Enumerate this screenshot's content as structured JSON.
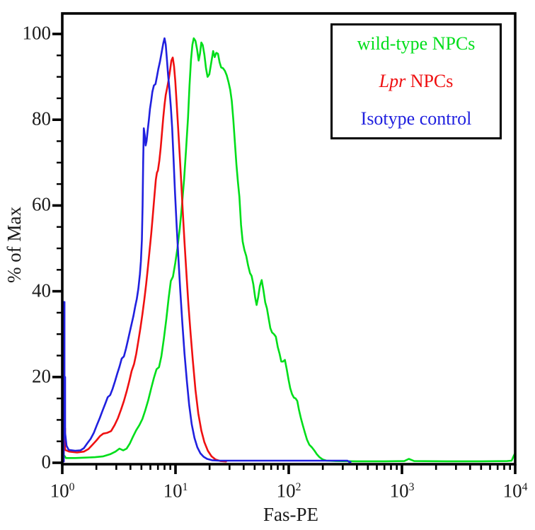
{
  "chart_data": {
    "type": "line",
    "subtype": "flow-cytometry-histogram-overlay",
    "title": "",
    "x_label": "Fas-PE",
    "y_label": "% of Max",
    "x_scale": "log",
    "x_range": [
      1,
      10000
    ],
    "y_range": [
      0,
      100
    ],
    "x_tick_base": "10",
    "x_tick_exponents": [
      0,
      1,
      2,
      3,
      4
    ],
    "y_ticks": [
      0,
      20,
      40,
      60,
      80,
      100
    ],
    "y_minor_tick_step": 5,
    "grid": false,
    "legend_position": "top-right",
    "series": [
      {
        "id": "wild-type-npcs",
        "name_italic": "",
        "name_rest": "wild-type NPCs",
        "color": "#00DE1A",
        "points": [
          [
            1.0,
            0.3
          ],
          [
            1.03,
            1.8
          ],
          [
            1.08,
            1.1
          ],
          [
            1.3,
            1.1
          ],
          [
            1.6,
            1.2
          ],
          [
            1.95,
            1.3
          ],
          [
            2.3,
            1.5
          ],
          [
            2.65,
            2.0
          ],
          [
            2.95,
            2.6
          ],
          [
            3.2,
            3.3
          ],
          [
            3.45,
            2.9
          ],
          [
            3.7,
            3.3
          ],
          [
            3.95,
            4.5
          ],
          [
            4.2,
            6.0
          ],
          [
            4.5,
            7.6
          ],
          [
            4.8,
            8.8
          ],
          [
            5.1,
            10.2
          ],
          [
            5.4,
            12.2
          ],
          [
            5.75,
            14.6
          ],
          [
            6.1,
            17.4
          ],
          [
            6.45,
            19.8
          ],
          [
            6.8,
            21.8
          ],
          [
            7.15,
            22.3
          ],
          [
            7.5,
            24.8
          ],
          [
            7.9,
            29.0
          ],
          [
            8.3,
            33.6
          ],
          [
            8.7,
            38.4
          ],
          [
            9.1,
            42.4
          ],
          [
            9.5,
            43.4
          ],
          [
            9.95,
            46.6
          ],
          [
            10.4,
            50.0
          ],
          [
            10.9,
            54.6
          ],
          [
            11.4,
            60.0
          ],
          [
            11.9,
            66.0
          ],
          [
            12.4,
            73.0
          ],
          [
            12.9,
            80.5
          ],
          [
            13.3,
            88.0
          ],
          [
            13.7,
            94.0
          ],
          [
            14.1,
            97.5
          ],
          [
            14.5,
            99.0
          ],
          [
            15.0,
            98.4
          ],
          [
            15.5,
            96.4
          ],
          [
            16.0,
            93.8
          ],
          [
            16.45,
            95.4
          ],
          [
            16.9,
            98.0
          ],
          [
            17.4,
            97.4
          ],
          [
            18.0,
            95.2
          ],
          [
            18.6,
            92.0
          ],
          [
            19.2,
            90.0
          ],
          [
            19.9,
            90.6
          ],
          [
            20.7,
            93.4
          ],
          [
            21.5,
            96.0
          ],
          [
            22.2,
            94.6
          ],
          [
            22.9,
            95.6
          ],
          [
            23.7,
            95.4
          ],
          [
            24.5,
            93.4
          ],
          [
            25.3,
            92.2
          ],
          [
            26.3,
            92.0
          ],
          [
            27.3,
            91.4
          ],
          [
            28.3,
            90.4
          ],
          [
            29.4,
            88.8
          ],
          [
            30.4,
            87.0
          ],
          [
            31.4,
            84.4
          ],
          [
            32.4,
            80.0
          ],
          [
            33.5,
            74.5
          ],
          [
            34.5,
            69.5
          ],
          [
            35.6,
            65.5
          ],
          [
            36.7,
            62.0
          ],
          [
            37.9,
            55.5
          ],
          [
            39.2,
            51.6
          ],
          [
            40.6,
            49.6
          ],
          [
            42.2,
            48.2
          ],
          [
            43.8,
            46.0
          ],
          [
            45.5,
            44.2
          ],
          [
            47.0,
            43.6
          ],
          [
            48.7,
            41.6
          ],
          [
            50.5,
            38.6
          ],
          [
            52.0,
            36.8
          ],
          [
            53.7,
            38.6
          ],
          [
            55.6,
            41.2
          ],
          [
            57.7,
            42.6
          ],
          [
            59.8,
            40.2
          ],
          [
            62.0,
            37.4
          ],
          [
            64.2,
            36.0
          ],
          [
            66.5,
            33.6
          ],
          [
            68.8,
            31.4
          ],
          [
            71.2,
            30.4
          ],
          [
            74.0,
            30.0
          ],
          [
            77.0,
            29.4
          ],
          [
            80.0,
            27.0
          ],
          [
            83.0,
            25.4
          ],
          [
            86.0,
            23.6
          ],
          [
            89.0,
            23.6
          ],
          [
            92.5,
            24.0
          ],
          [
            96.0,
            21.8
          ],
          [
            99.5,
            19.4
          ],
          [
            103.0,
            17.4
          ],
          [
            107.0,
            16.0
          ],
          [
            111.0,
            15.2
          ],
          [
            115.0,
            15.0
          ],
          [
            119.0,
            14.4
          ],
          [
            123.0,
            12.4
          ],
          [
            128.0,
            10.4
          ],
          [
            133.0,
            8.8
          ],
          [
            139.0,
            7.0
          ],
          [
            145.0,
            5.4
          ],
          [
            152.0,
            4.2
          ],
          [
            160.0,
            3.6
          ],
          [
            168.0,
            2.9
          ],
          [
            177.0,
            2.0
          ],
          [
            187.0,
            1.3
          ],
          [
            199.0,
            0.8
          ],
          [
            215.0,
            0.5
          ],
          [
            260.0,
            0.4
          ],
          [
            400.0,
            0.35
          ],
          [
            700.0,
            0.35
          ],
          [
            1050.0,
            0.4
          ],
          [
            1150.0,
            0.9
          ],
          [
            1280.0,
            0.4
          ],
          [
            2500.0,
            0.35
          ],
          [
            5000.0,
            0.35
          ],
          [
            8500.0,
            0.4
          ],
          [
            9300.0,
            0.5
          ],
          [
            9700.0,
            1.6
          ],
          [
            9950.0,
            2.2
          ],
          [
            10000.0,
            2.2
          ]
        ]
      },
      {
        "id": "lpr-npcs",
        "name_italic": "Lpr",
        "name_rest": " NPCs",
        "color": "#EF1011",
        "points": [
          [
            1.0,
            0.3
          ],
          [
            1.03,
            0.3
          ],
          [
            1.03,
            8.0
          ],
          [
            1.06,
            8.0
          ],
          [
            1.06,
            3.0
          ],
          [
            1.15,
            2.6
          ],
          [
            1.35,
            2.4
          ],
          [
            1.55,
            2.6
          ],
          [
            1.7,
            3.2
          ],
          [
            1.85,
            4.2
          ],
          [
            2.0,
            5.2
          ],
          [
            2.15,
            6.2
          ],
          [
            2.3,
            6.8
          ],
          [
            2.5,
            7.0
          ],
          [
            2.7,
            7.4
          ],
          [
            2.9,
            8.8
          ],
          [
            3.1,
            10.4
          ],
          [
            3.3,
            12.4
          ],
          [
            3.5,
            14.4
          ],
          [
            3.7,
            16.6
          ],
          [
            3.9,
            19.0
          ],
          [
            4.1,
            21.4
          ],
          [
            4.3,
            23.0
          ],
          [
            4.5,
            25.4
          ],
          [
            4.7,
            28.4
          ],
          [
            4.9,
            31.4
          ],
          [
            5.1,
            34.6
          ],
          [
            5.3,
            38.0
          ],
          [
            5.5,
            41.6
          ],
          [
            5.7,
            45.4
          ],
          [
            5.9,
            49.4
          ],
          [
            6.1,
            53.4
          ],
          [
            6.3,
            57.6
          ],
          [
            6.5,
            62.0
          ],
          [
            6.7,
            66.0
          ],
          [
            6.85,
            67.6
          ],
          [
            7.0,
            68.2
          ],
          [
            7.2,
            70.5
          ],
          [
            7.4,
            73.5
          ],
          [
            7.6,
            77.0
          ],
          [
            7.8,
            80.5
          ],
          [
            8.0,
            83.5
          ],
          [
            8.2,
            85.8
          ],
          [
            8.45,
            87.5
          ],
          [
            8.7,
            89.3
          ],
          [
            8.95,
            91.5
          ],
          [
            9.2,
            93.8
          ],
          [
            9.45,
            94.5
          ],
          [
            9.7,
            92.5
          ],
          [
            9.95,
            89.0
          ],
          [
            10.2,
            84.5
          ],
          [
            10.5,
            79.0
          ],
          [
            10.85,
            72.5
          ],
          [
            11.2,
            66.0
          ],
          [
            11.6,
            58.5
          ],
          [
            12.0,
            51.5
          ],
          [
            12.5,
            44.0
          ],
          [
            13.0,
            37.0
          ],
          [
            13.6,
            30.0
          ],
          [
            14.2,
            24.0
          ],
          [
            15.0,
            17.0
          ],
          [
            15.9,
            11.5
          ],
          [
            16.9,
            7.5
          ],
          [
            18.0,
            4.8
          ],
          [
            19.3,
            2.8
          ],
          [
            20.8,
            1.5
          ],
          [
            22.5,
            0.8
          ],
          [
            25.0,
            0.4
          ],
          [
            28.0,
            0.3
          ]
        ]
      },
      {
        "id": "isotype-control",
        "name_italic": "",
        "name_rest": "Isotype control",
        "color": "#2020DF",
        "points": [
          [
            1.0,
            0.3
          ],
          [
            1.03,
            0.3
          ],
          [
            1.03,
            37.5
          ],
          [
            1.045,
            37.5
          ],
          [
            1.045,
            20.0
          ],
          [
            1.06,
            20.0
          ],
          [
            1.06,
            7.0
          ],
          [
            1.09,
            4.0
          ],
          [
            1.14,
            3.0
          ],
          [
            1.3,
            2.8
          ],
          [
            1.45,
            2.9
          ],
          [
            1.55,
            3.4
          ],
          [
            1.67,
            4.6
          ],
          [
            1.78,
            5.6
          ],
          [
            1.9,
            7.0
          ],
          [
            2.02,
            8.8
          ],
          [
            2.14,
            10.4
          ],
          [
            2.27,
            12.2
          ],
          [
            2.4,
            13.8
          ],
          [
            2.52,
            15.3
          ],
          [
            2.65,
            15.8
          ],
          [
            2.78,
            17.2
          ],
          [
            2.92,
            19.0
          ],
          [
            3.06,
            20.8
          ],
          [
            3.2,
            22.4
          ],
          [
            3.35,
            24.3
          ],
          [
            3.5,
            24.8
          ],
          [
            3.65,
            26.6
          ],
          [
            3.8,
            28.6
          ],
          [
            3.95,
            30.6
          ],
          [
            4.1,
            32.4
          ],
          [
            4.25,
            34.2
          ],
          [
            4.4,
            36.4
          ],
          [
            4.55,
            38.2
          ],
          [
            4.7,
            40.6
          ],
          [
            4.85,
            44.0
          ],
          [
            4.95,
            47.0
          ],
          [
            5.05,
            52.0
          ],
          [
            5.12,
            60.0
          ],
          [
            5.18,
            70.0
          ],
          [
            5.25,
            78.0
          ],
          [
            5.35,
            76.5
          ],
          [
            5.45,
            74.0
          ],
          [
            5.55,
            75.0
          ],
          [
            5.68,
            77.5
          ],
          [
            5.82,
            80.0
          ],
          [
            5.95,
            82.5
          ],
          [
            6.1,
            84.5
          ],
          [
            6.25,
            86.5
          ],
          [
            6.45,
            88.0
          ],
          [
            6.65,
            88.3
          ],
          [
            6.85,
            90.0
          ],
          [
            7.05,
            91.8
          ],
          [
            7.3,
            93.6
          ],
          [
            7.55,
            95.8
          ],
          [
            7.8,
            97.8
          ],
          [
            8.0,
            99.0
          ],
          [
            8.2,
            97.5
          ],
          [
            8.4,
            94.0
          ],
          [
            8.6,
            90.5
          ],
          [
            8.85,
            87.0
          ],
          [
            9.1,
            83.0
          ],
          [
            9.35,
            78.0
          ],
          [
            9.6,
            71.0
          ],
          [
            9.9,
            63.0
          ],
          [
            10.2,
            56.0
          ],
          [
            10.6,
            48.0
          ],
          [
            11.0,
            40.5
          ],
          [
            11.5,
            32.5
          ],
          [
            12.0,
            25.5
          ],
          [
            12.6,
            19.0
          ],
          [
            13.2,
            13.5
          ],
          [
            13.9,
            9.0
          ],
          [
            14.7,
            5.8
          ],
          [
            15.6,
            3.6
          ],
          [
            16.6,
            2.2
          ],
          [
            17.7,
            1.4
          ],
          [
            19.0,
            0.9
          ],
          [
            21.0,
            0.6
          ],
          [
            24.0,
            0.5
          ],
          [
            30.0,
            0.5
          ],
          [
            50.0,
            0.5
          ],
          [
            90.0,
            0.5
          ],
          [
            160.0,
            0.5
          ],
          [
            250.0,
            0.5
          ],
          [
            330.0,
            0.5
          ],
          [
            342.0,
            0.2
          ],
          [
            352.0,
            0.2
          ]
        ]
      }
    ]
  },
  "legend": {
    "items": [
      {
        "label": "wild-type NPCs",
        "color": "#00DE1A"
      },
      {
        "label": "Lpr NPCs",
        "color": "#EF1011"
      },
      {
        "label": "Isotype control",
        "color": "#2020DF"
      }
    ]
  }
}
